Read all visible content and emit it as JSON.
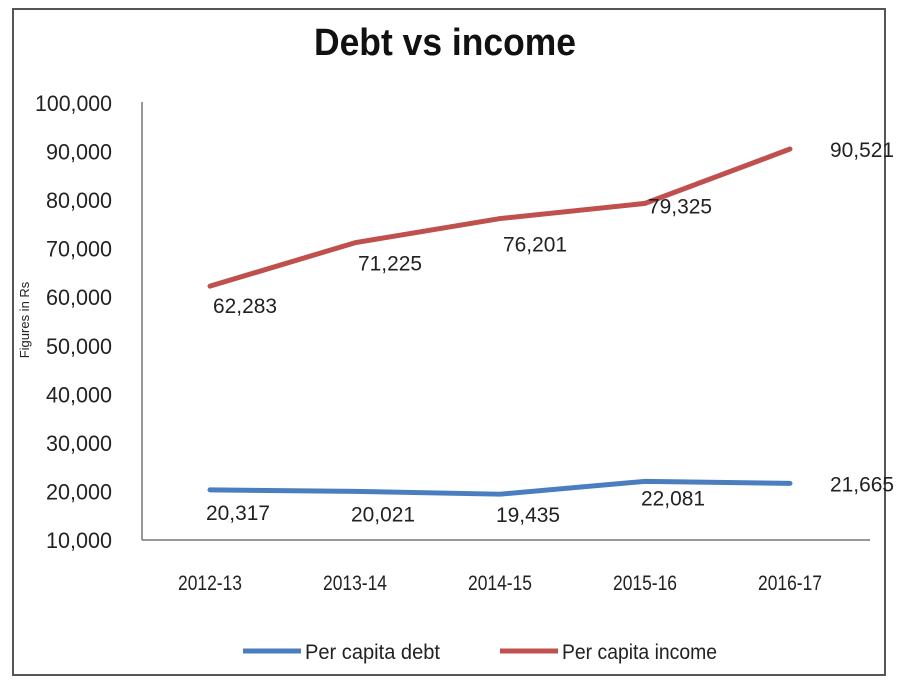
{
  "chart_data": {
    "type": "line",
    "title": "Debt vs income",
    "xlabel": "",
    "ylabel": "Figures in Rs",
    "categories": [
      "2012-13",
      "2013-14",
      "2014-15",
      "2015-16",
      "2016-17"
    ],
    "ylim": [
      10000,
      100000
    ],
    "yticks": [
      "10,000",
      "20,000",
      "30,000",
      "40,000",
      "50,000",
      "60,000",
      "70,000",
      "80,000",
      "90,000",
      "100,000"
    ],
    "grid": false,
    "legend_position": "bottom",
    "series": [
      {
        "name": "Per capita debt",
        "color": "#4a7ebf",
        "values": [
          20317,
          20021,
          19435,
          22081,
          21665
        ],
        "labels": [
          "20,317",
          "20,021",
          "19,435",
          "22,081",
          "21,665"
        ]
      },
      {
        "name": "Per capita income",
        "color": "#c0504d",
        "values": [
          62283,
          71225,
          76201,
          79325,
          90521
        ],
        "labels": [
          "62,283",
          "71,225",
          "76,201",
          "79,325",
          "90,521"
        ]
      }
    ]
  }
}
